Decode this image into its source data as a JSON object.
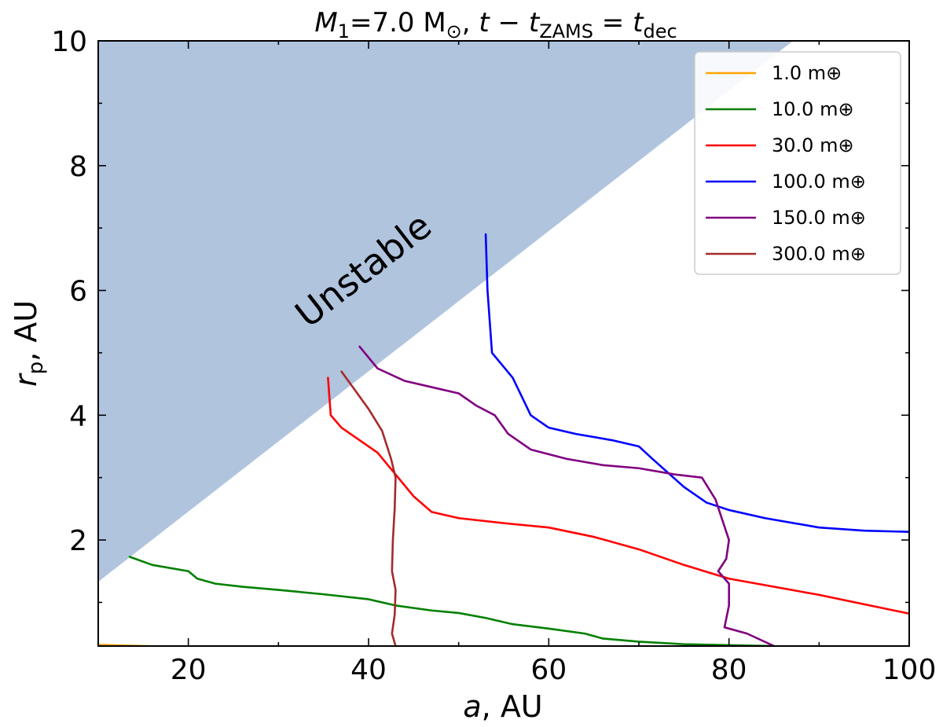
{
  "chart_data": {
    "type": "line",
    "title": {
      "mass_var": "M",
      "mass_sub": "1",
      "mass_value": "=7.0 M",
      "mass_unit_sub": "⊙",
      "sep": ", ",
      "time_var": "t",
      "minus": " − ",
      "zams_var": "t",
      "zams_sub": "ZAMS",
      "equals": " = ",
      "dec_var": "t",
      "dec_sub": "dec"
    },
    "xlabel": {
      "var": "a",
      "rest": ", AU"
    },
    "ylabel": {
      "var": "r",
      "sub": "p",
      "rest": ", AU"
    },
    "xlim": [
      10,
      100
    ],
    "ylim": [
      0.3,
      10
    ],
    "x_ticks": [
      20,
      40,
      60,
      80,
      100
    ],
    "y_ticks": [
      2,
      4,
      6,
      8,
      10
    ],
    "x_tick_labels": [
      "20",
      "40",
      "60",
      "80",
      "100"
    ],
    "y_tick_labels": [
      "2",
      "4",
      "6",
      "8",
      "10"
    ],
    "x_minor_ticks": [
      10,
      30,
      50,
      70,
      90
    ],
    "y_minor_ticks": [
      1,
      3,
      5,
      7,
      9
    ],
    "legend_position": "top-right",
    "unstable_region": {
      "label": "Unstable",
      "color": "#b0c4de",
      "boundary": [
        [
          10,
          1.33
        ],
        [
          87.1,
          10
        ]
      ]
    },
    "series": [
      {
        "name": "1.0 m⊕",
        "color": "#ffa500",
        "points": [
          [
            10,
            0.32
          ],
          [
            15.5,
            0.3
          ]
        ]
      },
      {
        "name": "10.0 m⊕",
        "color": "#008000",
        "points": [
          [
            13.5,
            1.73
          ],
          [
            16,
            1.6
          ],
          [
            20,
            1.5
          ],
          [
            21,
            1.38
          ],
          [
            23,
            1.3
          ],
          [
            26,
            1.25
          ],
          [
            30,
            1.2
          ],
          [
            35,
            1.13
          ],
          [
            40,
            1.05
          ],
          [
            43,
            0.95
          ],
          [
            47,
            0.87
          ],
          [
            50,
            0.83
          ],
          [
            53,
            0.75
          ],
          [
            56,
            0.65
          ],
          [
            60,
            0.58
          ],
          [
            64,
            0.5
          ],
          [
            66,
            0.42
          ],
          [
            70,
            0.37
          ],
          [
            75,
            0.33
          ],
          [
            85,
            0.3
          ]
        ]
      },
      {
        "name": "30.0 m⊕",
        "color": "#ff0000",
        "points": [
          [
            35.5,
            4.6
          ],
          [
            35.8,
            4.0
          ],
          [
            37,
            3.8
          ],
          [
            39,
            3.6
          ],
          [
            41,
            3.4
          ],
          [
            43,
            3.05
          ],
          [
            45,
            2.7
          ],
          [
            47,
            2.45
          ],
          [
            50,
            2.35
          ],
          [
            55,
            2.27
          ],
          [
            60,
            2.2
          ],
          [
            65,
            2.05
          ],
          [
            70,
            1.85
          ],
          [
            75,
            1.6
          ],
          [
            80,
            1.38
          ],
          [
            90,
            1.12
          ],
          [
            100,
            0.82
          ]
        ]
      },
      {
        "name": "100.0 m⊕",
        "color": "#0000ff",
        "points": [
          [
            53,
            6.9
          ],
          [
            53.2,
            6.0
          ],
          [
            53.7,
            5.0
          ],
          [
            56,
            4.6
          ],
          [
            58,
            4.0
          ],
          [
            60,
            3.8
          ],
          [
            63,
            3.7
          ],
          [
            67,
            3.6
          ],
          [
            70,
            3.5
          ],
          [
            71.5,
            3.3
          ],
          [
            75,
            2.85
          ],
          [
            77.5,
            2.6
          ],
          [
            80,
            2.48
          ],
          [
            84,
            2.35
          ],
          [
            90,
            2.2
          ],
          [
            95,
            2.15
          ],
          [
            100,
            2.13
          ]
        ]
      },
      {
        "name": "150.0 m⊕",
        "color": "#800080",
        "points": [
          [
            39,
            5.1
          ],
          [
            41,
            4.75
          ],
          [
            44,
            4.55
          ],
          [
            47,
            4.45
          ],
          [
            50,
            4.35
          ],
          [
            52,
            4.15
          ],
          [
            54,
            4.0
          ],
          [
            55.5,
            3.7
          ],
          [
            58,
            3.45
          ],
          [
            62,
            3.3
          ],
          [
            66,
            3.2
          ],
          [
            70,
            3.15
          ],
          [
            74,
            3.05
          ],
          [
            77,
            3.0
          ],
          [
            78.5,
            2.65
          ],
          [
            80,
            2.0
          ],
          [
            79.7,
            1.7
          ],
          [
            78.8,
            1.5
          ],
          [
            80,
            1.3
          ],
          [
            80,
            0.95
          ],
          [
            79.5,
            0.6
          ],
          [
            82,
            0.5
          ],
          [
            85,
            0.3
          ]
        ]
      },
      {
        "name": "300.0 m⊕",
        "color": "#a52a2a",
        "points": [
          [
            37,
            4.7
          ],
          [
            38.5,
            4.4
          ],
          [
            40,
            4.1
          ],
          [
            41.5,
            3.75
          ],
          [
            42.5,
            3.3
          ],
          [
            43,
            3.0
          ],
          [
            42.9,
            2.5
          ],
          [
            42.7,
            2.0
          ],
          [
            42.6,
            1.5
          ],
          [
            43,
            1.2
          ],
          [
            42.9,
            0.8
          ],
          [
            42.6,
            0.5
          ],
          [
            43,
            0.3
          ]
        ]
      }
    ]
  }
}
